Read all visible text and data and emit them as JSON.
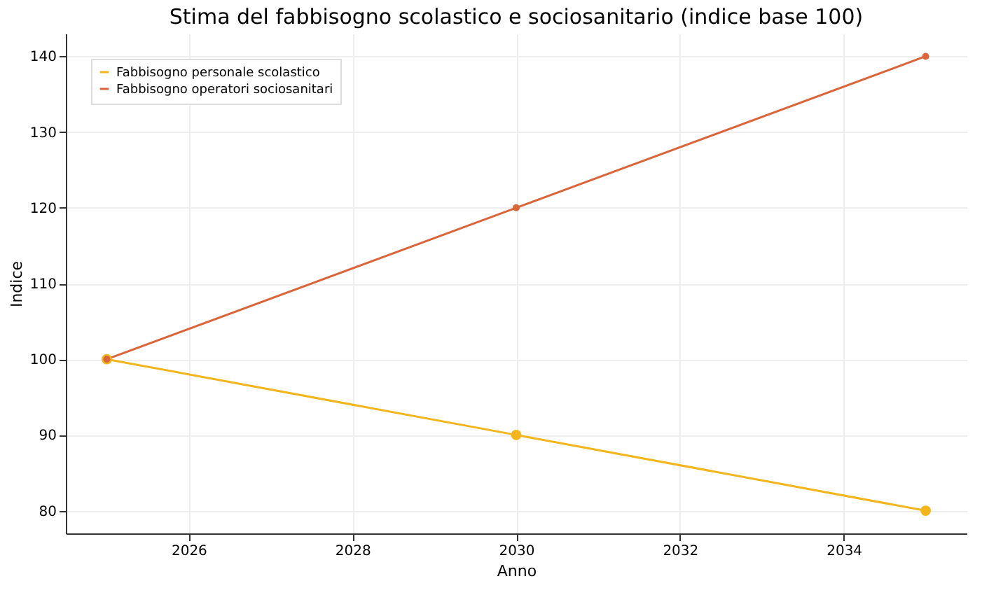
{
  "chart_data": {
    "type": "line",
    "title": "Stima del fabbisogno scolastico e sociosanitario (indice base 100)",
    "xlabel": "Anno",
    "ylabel": "Indice",
    "x": [
      2025,
      2030,
      2035
    ],
    "series": [
      {
        "name": "Fabbisogno personale scolastico",
        "color": "#f2b51c",
        "values": [
          100,
          90,
          80
        ]
      },
      {
        "name": "Fabbisogno operatori sociosanitari",
        "color": "#d9653b",
        "values": [
          100,
          120,
          140
        ]
      }
    ],
    "xlim": [
      2024.5,
      2035.5
    ],
    "xticks": [
      2026,
      2028,
      2030,
      2032,
      2034
    ],
    "ylim": [
      77,
      143
    ],
    "yticks": [
      80,
      90,
      100,
      110,
      120,
      130,
      140
    ],
    "grid": true,
    "legend": "top left",
    "marker": "circle",
    "line_style": "solid"
  }
}
